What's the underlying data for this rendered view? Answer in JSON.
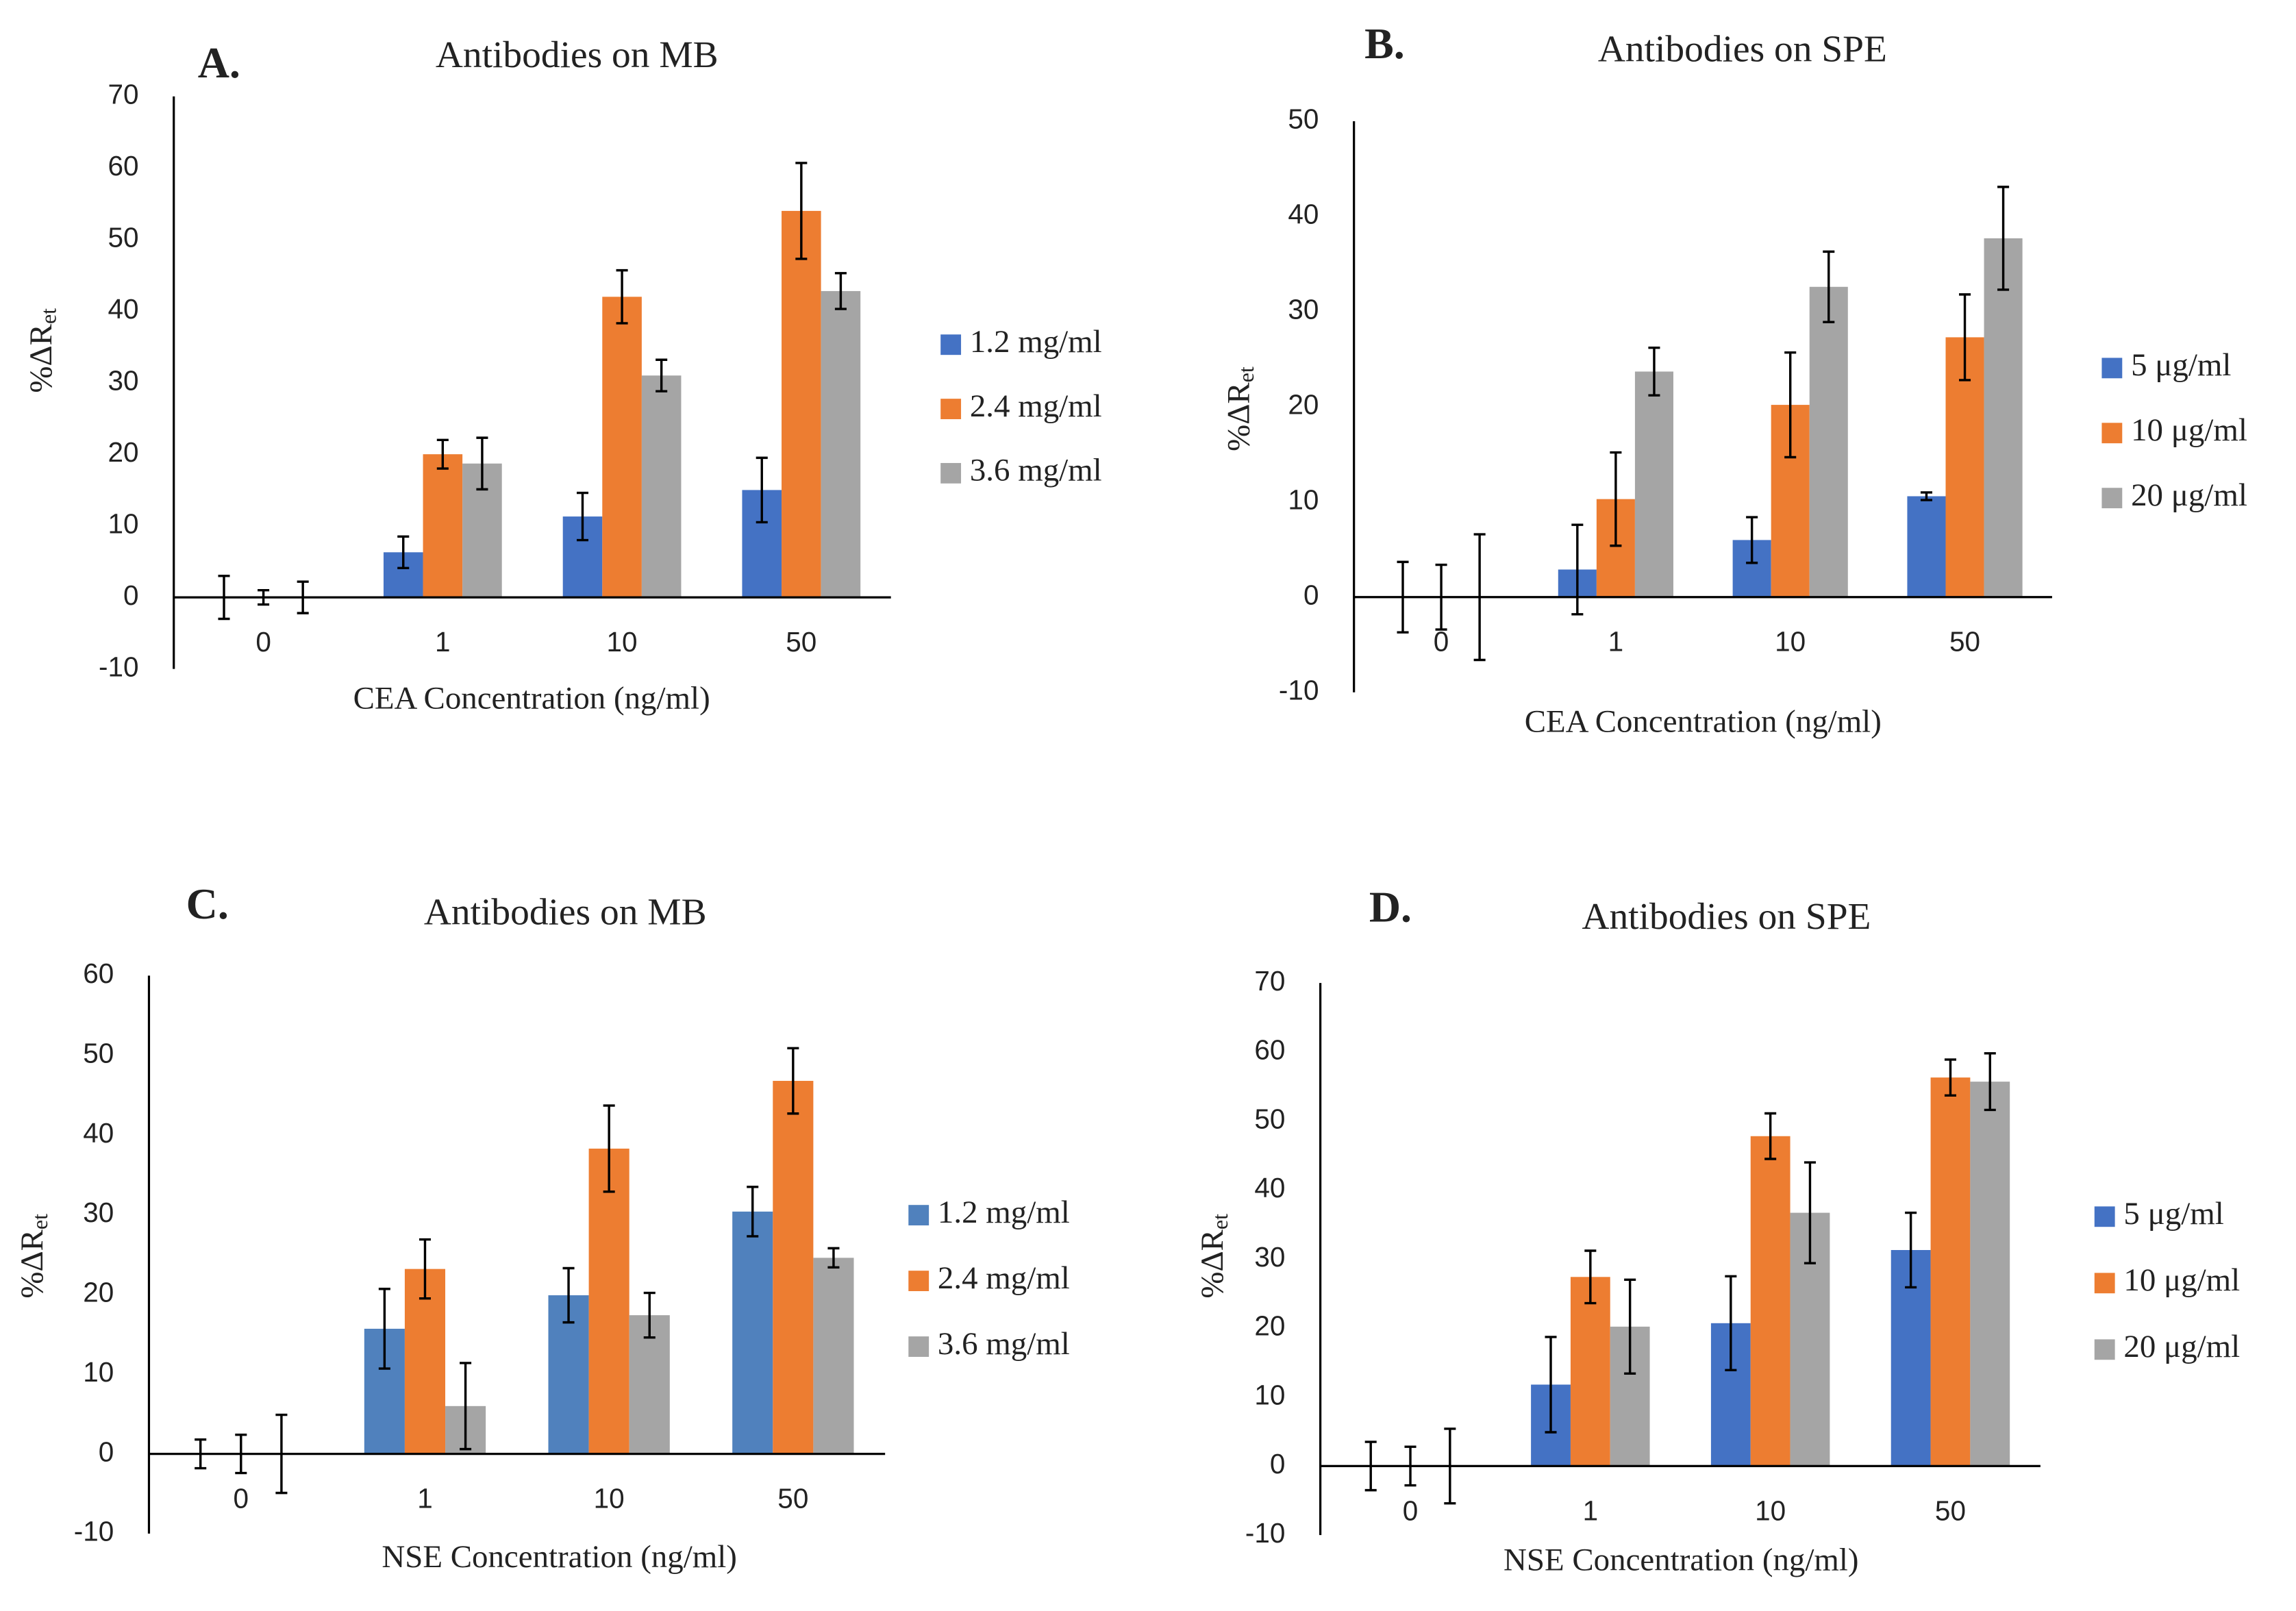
{
  "chart_data": [
    {
      "type": "bar",
      "panel": "A.",
      "title": "Antibodies on MB",
      "xlabel": "CEA Concentration (ng/ml)",
      "ylabel": "%ΔR",
      "ylabel_sub": "et",
      "categories": [
        "0",
        "1",
        "10",
        "50"
      ],
      "series": [
        {
          "name": "1.2 mg/ml",
          "color": "#4472c4",
          "values": [
            0,
            6.3,
            11.3,
            15
          ],
          "errors": [
            3,
            2.2,
            3.3,
            4.5
          ]
        },
        {
          "name": "2.4 mg/ml",
          "color": "#ed7d31",
          "values": [
            0,
            20,
            42,
            54
          ],
          "errors": [
            1,
            2,
            3.7,
            6.7
          ]
        },
        {
          "name": "3.6 mg/ml",
          "color": "#a5a5a5",
          "values": [
            0,
            18.7,
            31,
            42.8
          ],
          "errors": [
            2.2,
            3.6,
            2.2,
            2.5
          ]
        }
      ],
      "ylim": [
        -10,
        70
      ],
      "yticks": [
        -10,
        0,
        10,
        20,
        30,
        40,
        50,
        60,
        70
      ]
    },
    {
      "type": "bar",
      "panel": "B.",
      "title": "Antibodies on SPE",
      "xlabel": "CEA Concentration (ng/ml)",
      "ylabel": "%ΔR",
      "ylabel_sub": "et",
      "categories": [
        "0",
        "1",
        "10",
        "50"
      ],
      "series": [
        {
          "name": "5 μg/ml",
          "color": "#4472c4",
          "values": [
            0,
            2.9,
            6,
            10.6
          ],
          "errors": [
            3.7,
            4.7,
            2.4,
            0.4
          ]
        },
        {
          "name": "10 μg/ml",
          "color": "#ed7d31",
          "values": [
            0,
            10.3,
            20.2,
            27.3
          ],
          "errors": [
            3.4,
            4.9,
            5.5,
            4.5
          ]
        },
        {
          "name": "20 μg/ml",
          "color": "#a5a5a5",
          "values": [
            0,
            23.7,
            32.6,
            37.7
          ],
          "errors": [
            6.6,
            2.5,
            3.7,
            5.4
          ]
        }
      ],
      "ylim": [
        -10,
        50
      ],
      "yticks": [
        -10,
        0,
        10,
        20,
        30,
        40,
        50
      ]
    },
    {
      "type": "bar",
      "panel": "C.",
      "title": "Antibodies on MB",
      "xlabel": "NSE Concentration (ng/ml)",
      "ylabel": "%ΔR",
      "ylabel_sub": "et",
      "categories": [
        "0",
        "1",
        "10",
        "50"
      ],
      "series": [
        {
          "name": "1.2 mg/ml",
          "color": "#5081bd",
          "values": [
            0,
            15.7,
            19.9,
            30.4
          ],
          "errors": [
            1.8,
            5,
            3.4,
            3.1
          ]
        },
        {
          "name": "2.4 mg/ml",
          "color": "#ed7d31",
          "values": [
            0,
            23.2,
            38.3,
            46.8
          ],
          "errors": [
            2.4,
            3.7,
            5.4,
            4.1
          ]
        },
        {
          "name": "3.6 mg/ml",
          "color": "#a5a5a5",
          "values": [
            0,
            6,
            17.4,
            24.6
          ],
          "errors": [
            4.9,
            5.4,
            2.8,
            1.2
          ]
        }
      ],
      "ylim": [
        -10,
        60
      ],
      "yticks": [
        -10,
        0,
        10,
        20,
        30,
        40,
        50,
        60
      ]
    },
    {
      "type": "bar",
      "panel": "D.",
      "title": "Antibodies on SPE",
      "xlabel": "NSE Concentration (ng/ml)",
      "ylabel": "%ΔR",
      "ylabel_sub": "et",
      "categories": [
        "0",
        "1",
        "10",
        "50"
      ],
      "series": [
        {
          "name": "5 μg/ml",
          "color": "#4472c4",
          "values": [
            0,
            11.8,
            20.7,
            31.3
          ],
          "errors": [
            3.5,
            6.9,
            6.8,
            5.4
          ]
        },
        {
          "name": "10 μg/ml",
          "color": "#ed7d31",
          "values": [
            0,
            27.4,
            47.8,
            56.3
          ],
          "errors": [
            2.8,
            3.8,
            3.3,
            2.6
          ]
        },
        {
          "name": "20 μg/ml",
          "color": "#a5a5a5",
          "values": [
            0,
            20.2,
            36.7,
            55.7
          ],
          "errors": [
            5.4,
            6.8,
            7.3,
            4.1
          ]
        }
      ],
      "ylim": [
        -10,
        70
      ],
      "yticks": [
        -10,
        0,
        10,
        20,
        30,
        40,
        50,
        60,
        70
      ]
    }
  ]
}
